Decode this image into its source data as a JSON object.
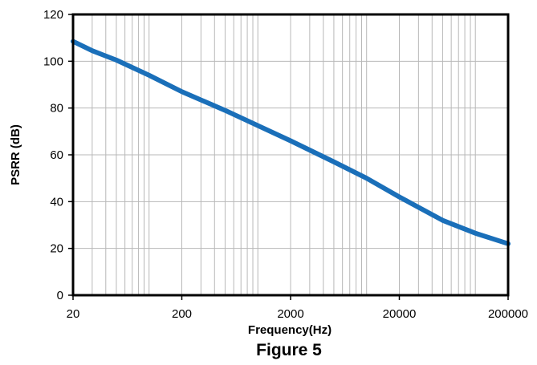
{
  "caption": "Figure 5",
  "chart_data": {
    "type": "line",
    "title": "",
    "xlabel": "Frequency(Hz)",
    "ylabel": "PSRR (dB)",
    "xscale": "log",
    "xlim": [
      20,
      200000
    ],
    "ylim": [
      0,
      120
    ],
    "grid": true,
    "x_tick_labels": [
      "20",
      "200",
      "2000",
      "20000",
      "200000"
    ],
    "y_tick_labels": [
      "0",
      "20",
      "40",
      "60",
      "80",
      "100",
      "120"
    ],
    "series": [
      {
        "color": "#1a6fb9",
        "points": [
          [
            20,
            108.5
          ],
          [
            30,
            104.5
          ],
          [
            50,
            100.5
          ],
          [
            100,
            94
          ],
          [
            200,
            87
          ],
          [
            500,
            79
          ],
          [
            1000,
            72.5
          ],
          [
            2000,
            66
          ],
          [
            5000,
            57
          ],
          [
            10000,
            50
          ],
          [
            20000,
            42
          ],
          [
            50000,
            32
          ],
          [
            100000,
            26.5
          ],
          [
            200000,
            22
          ]
        ]
      }
    ]
  }
}
